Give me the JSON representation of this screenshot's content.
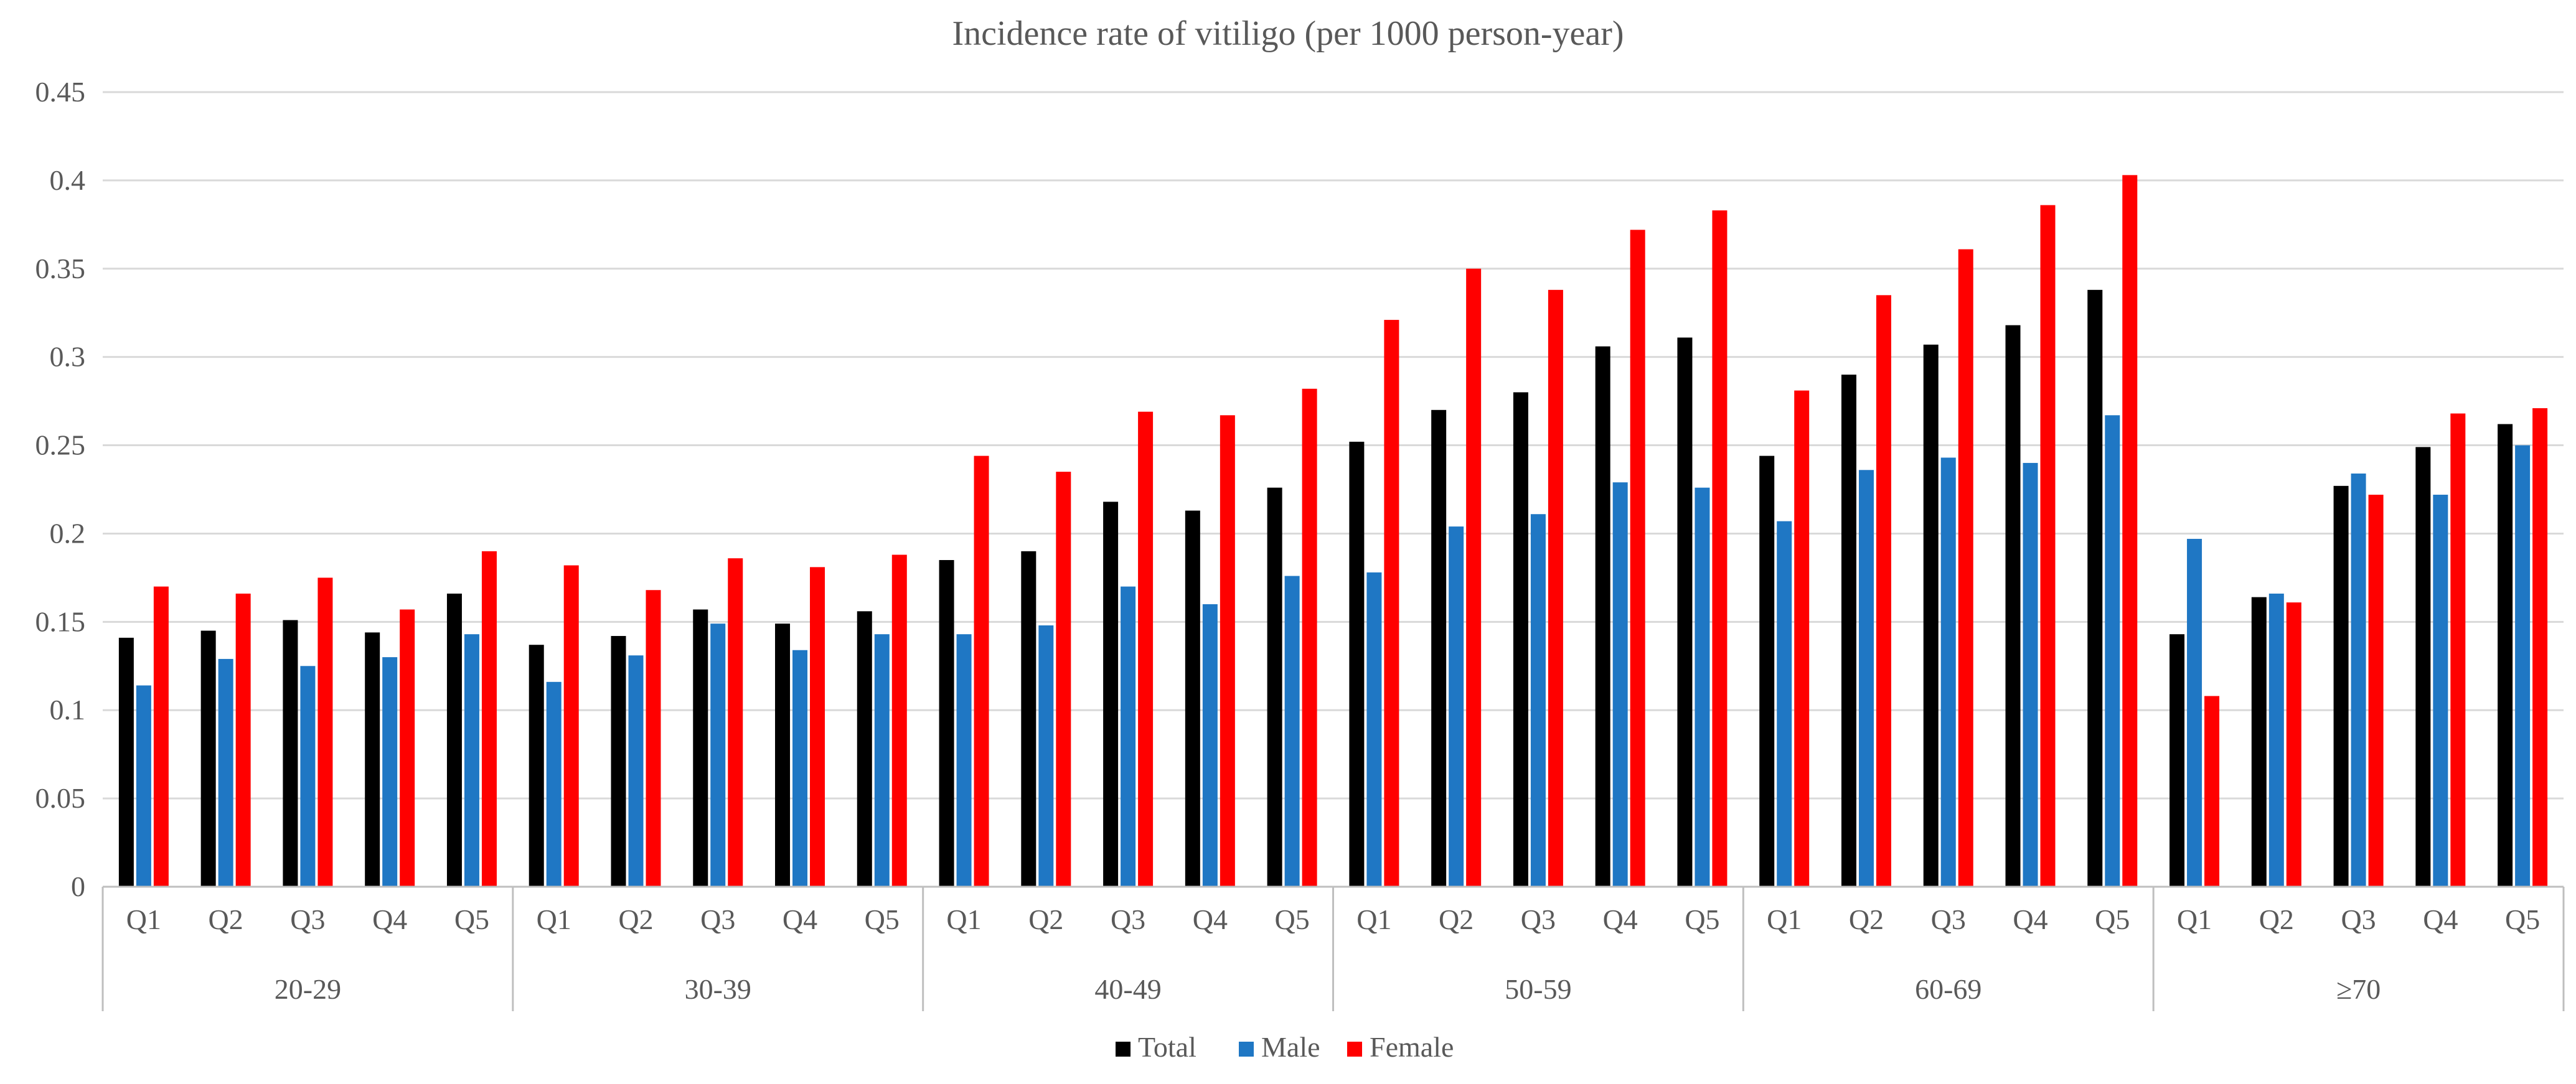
{
  "chart_data": {
    "type": "bar",
    "title": "Incidence rate of vitiligo (per 1000 person-year)",
    "xlabel": "",
    "ylabel": "",
    "ylim": [
      0,
      0.45
    ],
    "yticks": [
      "0",
      "0.05",
      "0.1",
      "0.15",
      "0.2",
      "0.25",
      "0.3",
      "0.35",
      "0.4",
      "0.45"
    ],
    "grid": true,
    "legend_position": "bottom",
    "groups": [
      {
        "label": "20-29",
        "categories": [
          "Q1",
          "Q2",
          "Q3",
          "Q4",
          "Q5"
        ]
      },
      {
        "label": "30-39",
        "categories": [
          "Q1",
          "Q2",
          "Q3",
          "Q4",
          "Q5"
        ]
      },
      {
        "label": "40-49",
        "categories": [
          "Q1",
          "Q2",
          "Q3",
          "Q4",
          "Q5"
        ]
      },
      {
        "label": "50-59",
        "categories": [
          "Q1",
          "Q2",
          "Q3",
          "Q4",
          "Q5"
        ]
      },
      {
        "label": "60-69",
        "categories": [
          "Q1",
          "Q2",
          "Q3",
          "Q4",
          "Q5"
        ]
      },
      {
        "label": "≥70",
        "categories": [
          "Q1",
          "Q2",
          "Q3",
          "Q4",
          "Q5"
        ]
      }
    ],
    "series": [
      {
        "name": "Total",
        "color": "#000000",
        "values": [
          0.141,
          0.145,
          0.151,
          0.144,
          0.166,
          0.137,
          0.142,
          0.157,
          0.149,
          0.156,
          0.185,
          0.19,
          0.218,
          0.213,
          0.226,
          0.252,
          0.27,
          0.28,
          0.306,
          0.311,
          0.244,
          0.29,
          0.307,
          0.318,
          0.338,
          0.143,
          0.164,
          0.227,
          0.249,
          0.262
        ]
      },
      {
        "name": "Male",
        "color": "#1f77c4",
        "values": [
          0.114,
          0.129,
          0.125,
          0.13,
          0.143,
          0.116,
          0.131,
          0.149,
          0.134,
          0.143,
          0.143,
          0.148,
          0.17,
          0.16,
          0.176,
          0.178,
          0.204,
          0.211,
          0.229,
          0.226,
          0.207,
          0.236,
          0.243,
          0.24,
          0.267,
          0.197,
          0.166,
          0.234,
          0.222,
          0.25
        ]
      },
      {
        "name": "Female",
        "color": "#ff0000",
        "values": [
          0.17,
          0.166,
          0.175,
          0.157,
          0.19,
          0.182,
          0.168,
          0.186,
          0.181,
          0.188,
          0.244,
          0.235,
          0.269,
          0.267,
          0.282,
          0.321,
          0.35,
          0.338,
          0.372,
          0.383,
          0.281,
          0.335,
          0.361,
          0.386,
          0.403,
          0.108,
          0.161,
          0.222,
          0.268,
          0.271
        ]
      }
    ]
  }
}
